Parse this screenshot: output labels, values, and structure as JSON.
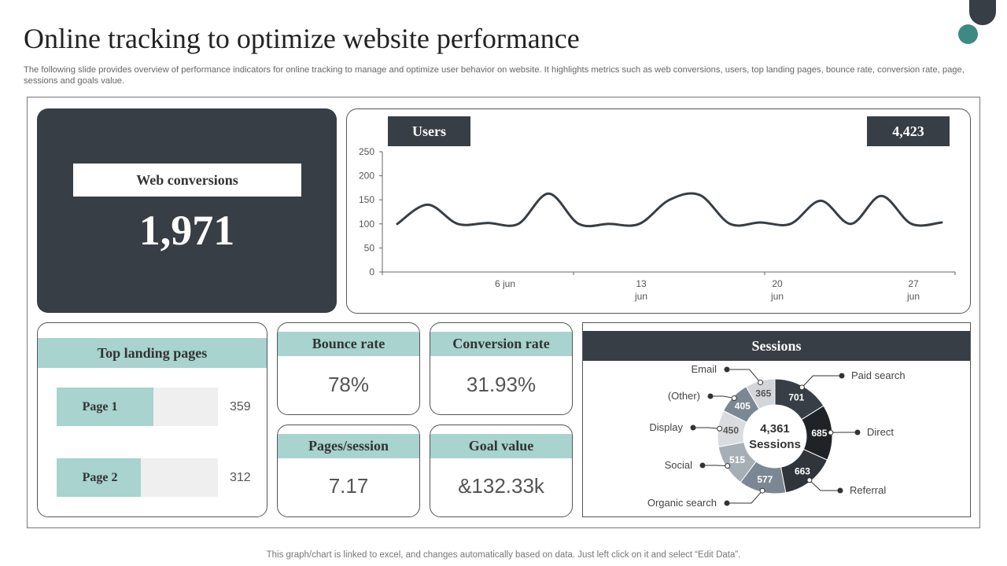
{
  "title": "Online tracking to optimize website performance",
  "subtitle": "The following slide provides overview of performance indicators for online tracking to manage and optimize user behavior on website. It highlights metrics such as web conversions, users, top landing pages, bounce rate, conversion rate, page, sessions and goals value.",
  "web_conversions": {
    "label": "Web conversions",
    "value": "1,971"
  },
  "users": {
    "label": "Users",
    "total": "4,423"
  },
  "top_landing": {
    "label": "Top landing pages",
    "pages": [
      {
        "name": "Page 1",
        "count": "359",
        "fill_pct": 60
      },
      {
        "name": "Page 2",
        "count": "312",
        "fill_pct": 52
      }
    ]
  },
  "bounce_rate": {
    "label": "Bounce rate",
    "value": "78%"
  },
  "conversion_rate": {
    "label": "Conversion rate",
    "value": "31.93%"
  },
  "pages_session": {
    "label": "Pages/session",
    "value": "7.17"
  },
  "goal_value": {
    "label": "Goal value",
    "value": "&132.33k"
  },
  "sessions": {
    "label": "Sessions",
    "center_value": "4,361",
    "center_label": "Sessions"
  },
  "footer": "This graph/chart is linked to excel,  and changes automatically based on data. Just left click on it and select “Edit Data”.",
  "colors": {
    "dark": "#373e45",
    "teal": "#a8d3cf",
    "accent": "#3c8a83"
  },
  "chart_data": [
    {
      "type": "line",
      "title": "Users",
      "series": [
        {
          "name": "Users",
          "values": [
            100,
            140,
            100,
            102,
            100,
            163,
            100,
            100,
            100,
            150,
            160,
            100,
            103,
            100,
            148,
            100,
            158,
            100,
            103
          ]
        }
      ],
      "ylim": [
        0,
        250
      ],
      "yticks": [
        "0",
        "50",
        "100",
        "150",
        "200",
        "250"
      ],
      "xtick_labels": [
        [
          "6 jun"
        ],
        [
          "13",
          "jun"
        ],
        [
          "20",
          "jun"
        ],
        [
          "27",
          "jun"
        ]
      ],
      "xlabel": "",
      "ylabel": ""
    },
    {
      "type": "pie",
      "title": "Sessions",
      "categories": [
        "Paid search",
        "Direct",
        "Referral",
        "Organic search",
        "Social",
        "Display",
        "(Other)",
        "Email"
      ],
      "values": [
        701,
        685,
        663,
        577,
        515,
        450,
        405,
        365
      ],
      "slice_colors": [
        "#373e45",
        "#1f2327",
        "#2f353b",
        "#7b8792",
        "#a6aeb6",
        "#d9dde1",
        "#7b8792",
        "#d2d6da"
      ],
      "label_colors": [
        "#ffffff",
        "#ffffff",
        "#ffffff",
        "#ffffff",
        "#ffffff",
        "#555555",
        "#ffffff",
        "#555555"
      ]
    }
  ]
}
